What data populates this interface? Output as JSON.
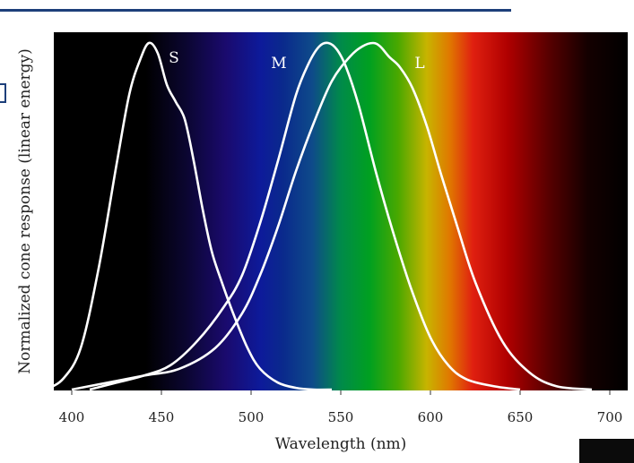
{
  "chart_data": {
    "type": "line",
    "title": "",
    "xlabel": "Wavelength (nm)",
    "ylabel": "Normalized cone response (linear energy)",
    "xlim": [
      390,
      710
    ],
    "ylim": [
      0,
      1
    ],
    "xticks": [
      400,
      450,
      500,
      550,
      600,
      650,
      700
    ],
    "grid": false,
    "legend": "labels at curve peaks",
    "background": "visible spectrum gradient",
    "series": [
      {
        "name": "S",
        "color": "#ffffff",
        "x": [
          385,
          395,
          405,
          415,
          425,
          432,
          438,
          443,
          448,
          453,
          458,
          463,
          468,
          473,
          478,
          483,
          490,
          498,
          505,
          515,
          525,
          535,
          545
        ],
        "y": [
          0.0,
          0.03,
          0.12,
          0.35,
          0.65,
          0.85,
          0.95,
          1.0,
          0.97,
          0.88,
          0.83,
          0.78,
          0.66,
          0.52,
          0.4,
          0.32,
          0.22,
          0.12,
          0.06,
          0.02,
          0.005,
          0.0,
          0.0
        ]
      },
      {
        "name": "M",
        "color": "#ffffff",
        "x": [
          410,
          425,
          440,
          455,
          470,
          485,
          495,
          505,
          515,
          525,
          532,
          538,
          543,
          548,
          553,
          560,
          570,
          580,
          590,
          600,
          610,
          620,
          635,
          650
        ],
        "y": [
          0.0,
          0.02,
          0.04,
          0.07,
          0.14,
          0.24,
          0.33,
          0.48,
          0.66,
          0.85,
          0.94,
          0.99,
          1.0,
          0.98,
          0.93,
          0.82,
          0.62,
          0.44,
          0.28,
          0.15,
          0.07,
          0.03,
          0.01,
          0.0
        ]
      },
      {
        "name": "L",
        "color": "#ffffff",
        "x": [
          400,
          420,
          440,
          460,
          480,
          495,
          505,
          515,
          525,
          535,
          545,
          555,
          562,
          568,
          572,
          577,
          583,
          590,
          598,
          606,
          615,
          625,
          640,
          655,
          670,
          690
        ],
        "y": [
          0.0,
          0.02,
          0.04,
          0.06,
          0.12,
          0.22,
          0.33,
          0.47,
          0.63,
          0.77,
          0.89,
          0.96,
          0.99,
          1.0,
          0.99,
          0.96,
          0.93,
          0.87,
          0.76,
          0.62,
          0.47,
          0.31,
          0.14,
          0.05,
          0.01,
          0.0
        ]
      }
    ]
  }
}
